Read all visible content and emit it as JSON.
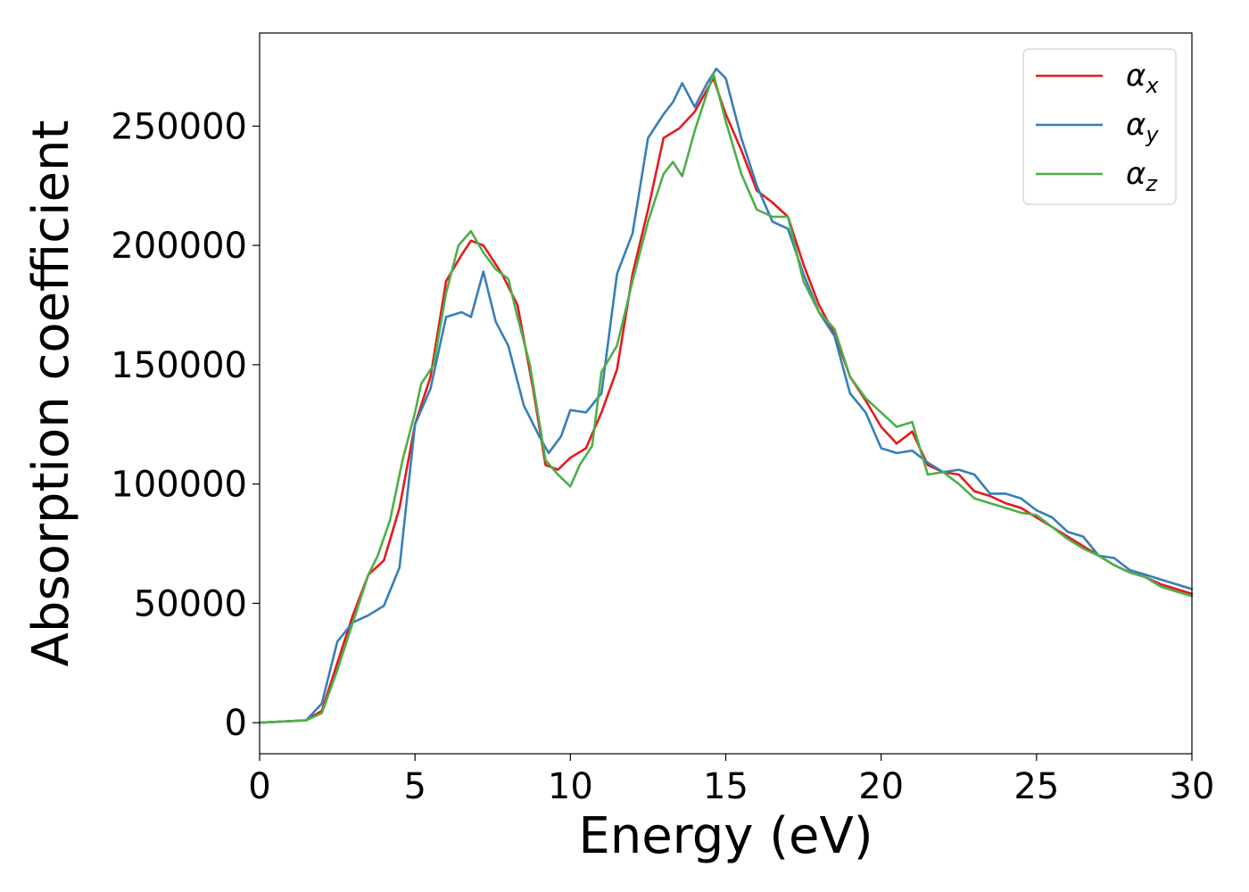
{
  "chart_data": {
    "type": "line",
    "xlabel": "Energy (eV)",
    "ylabel": "Absorption coefficient",
    "xlim": [
      0,
      30
    ],
    "ylim": [
      -13000,
      289000
    ],
    "xticks": [
      0,
      5,
      10,
      15,
      20,
      25,
      30
    ],
    "yticks": [
      0,
      50000,
      100000,
      150000,
      200000,
      250000
    ],
    "grid": false,
    "legend_position": "top-right",
    "series": [
      {
        "name": "α",
        "subscript": "x",
        "color": "#e41a1c",
        "x": [
          0,
          1.5,
          2,
          2.5,
          3,
          3.5,
          4,
          4.5,
          5,
          5.5,
          6,
          6.5,
          6.8,
          7.2,
          7.8,
          8.3,
          8.8,
          9.2,
          9.6,
          10,
          10.5,
          11,
          11.5,
          12,
          12.5,
          13,
          13.5,
          14,
          14.6,
          15,
          15.5,
          16,
          16.5,
          17,
          17.5,
          18,
          18.5,
          19,
          19.5,
          20,
          20.5,
          21,
          21.5,
          22,
          22.5,
          23,
          23.5,
          24,
          24.5,
          25,
          25.5,
          26,
          26.5,
          27,
          27.5,
          28,
          28.5,
          29,
          29.5,
          30
        ],
        "values": [
          0,
          1000,
          5000,
          25000,
          45000,
          62000,
          68000,
          90000,
          125000,
          145000,
          185000,
          196000,
          202000,
          200000,
          188000,
          175000,
          140000,
          108000,
          106000,
          111000,
          115000,
          130000,
          148000,
          188000,
          215000,
          245000,
          249000,
          256000,
          270000,
          255000,
          240000,
          223000,
          218000,
          212000,
          192000,
          175000,
          163000,
          145000,
          135000,
          124000,
          117000,
          122000,
          108000,
          105000,
          104000,
          97000,
          95000,
          92000,
          90000,
          86000,
          82000,
          78000,
          74000,
          70000,
          66000,
          63000,
          61000,
          58000,
          56000,
          54000
        ]
      },
      {
        "name": "α",
        "subscript": "y",
        "color": "#377eb8",
        "x": [
          0,
          1.5,
          2,
          2.5,
          3,
          3.5,
          4,
          4.5,
          5,
          5.5,
          6,
          6.5,
          6.8,
          7.2,
          7.6,
          8,
          8.5,
          9,
          9.3,
          9.7,
          10,
          10.5,
          11,
          11.5,
          12,
          12.5,
          13,
          13.3,
          13.6,
          14,
          14.4,
          14.7,
          15,
          15.5,
          16,
          16.5,
          17,
          17.5,
          18,
          18.5,
          19,
          19.5,
          20,
          20.5,
          21,
          21.5,
          22,
          22.5,
          23,
          23.5,
          24,
          24.5,
          25,
          25.5,
          26,
          26.5,
          27,
          27.5,
          28,
          28.5,
          29,
          29.5,
          30
        ],
        "values": [
          0,
          1000,
          8000,
          34000,
          42000,
          45000,
          49000,
          65000,
          125000,
          140000,
          170000,
          172000,
          170000,
          189000,
          168000,
          158000,
          133000,
          120000,
          113000,
          120000,
          131000,
          130000,
          138000,
          188000,
          205000,
          245000,
          255000,
          260000,
          268000,
          258000,
          268000,
          274000,
          270000,
          245000,
          225000,
          210000,
          207000,
          188000,
          172000,
          162000,
          138000,
          130000,
          115000,
          113000,
          114000,
          109000,
          105000,
          106000,
          104000,
          96000,
          96000,
          94000,
          89000,
          86000,
          80000,
          78000,
          70000,
          69000,
          64000,
          62000,
          60000,
          58000,
          56000
        ],
        "values_note": ""
      },
      {
        "name": "α",
        "subscript": "z",
        "color": "#4daf4a",
        "x": [
          0,
          1.5,
          2,
          2.5,
          3,
          3.5,
          3.8,
          4.2,
          4.6,
          5,
          5.2,
          5.6,
          6,
          6.4,
          6.8,
          7.2,
          7.6,
          8,
          8.3,
          8.7,
          9.2,
          9.6,
          10,
          10.3,
          10.7,
          11,
          11.5,
          12,
          12.5,
          13,
          13.3,
          13.6,
          14,
          14.6,
          15,
          15.5,
          16,
          16.5,
          17,
          17.5,
          18,
          18.5,
          19,
          19.5,
          20,
          20.5,
          21,
          21.5,
          22,
          22.5,
          23,
          23.5,
          24,
          24.5,
          25,
          25.5,
          26,
          26.5,
          27,
          27.5,
          28,
          28.5,
          29,
          29.5,
          30
        ],
        "values": [
          0,
          1000,
          4000,
          22000,
          42000,
          62000,
          70000,
          85000,
          110000,
          130000,
          142000,
          150000,
          180000,
          200000,
          206000,
          197000,
          190000,
          186000,
          170000,
          150000,
          110000,
          104000,
          99000,
          108000,
          116000,
          147000,
          158000,
          185000,
          210000,
          230000,
          235000,
          229000,
          248000,
          272000,
          252000,
          230000,
          215000,
          212000,
          212000,
          185000,
          172000,
          165000,
          145000,
          136000,
          130000,
          124000,
          126000,
          104000,
          105000,
          100000,
          94000,
          92000,
          90000,
          88000,
          87000,
          82000,
          77000,
          73000,
          70000,
          66000,
          63000,
          61000,
          57000,
          55000,
          53000
        ]
      }
    ]
  }
}
